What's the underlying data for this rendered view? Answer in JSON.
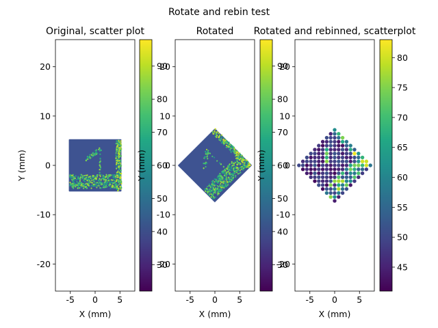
{
  "suptitle": "Rotate and rebin test",
  "colors": {
    "colormap": "viridis",
    "background": "#ffffff",
    "spine": "#000000"
  },
  "chart_data": [
    {
      "type": "scatter",
      "title": "Original, scatter plot",
      "xlabel": "X (mm)",
      "ylabel": "Y (mm)",
      "xlim": [
        -8,
        8
      ],
      "ylim": [
        -25.5,
        25.5
      ],
      "xticks": [
        -5,
        0,
        5
      ],
      "yticks": [
        -20,
        -10,
        0,
        10,
        20
      ],
      "colorbar": {
        "range": [
          22,
          98
        ],
        "ticks": [
          30,
          40,
          50,
          60,
          70,
          80,
          90
        ]
      },
      "shape": "square",
      "half_extent": 5.3,
      "background_value": 52,
      "background_color": "#3e5391",
      "features": {
        "stroke_1_vertical": {
          "x": [
            0.9,
            1.1
          ],
          "y": [
            -3.5,
            3.2
          ]
        },
        "stroke_1_flag": {
          "from": [
            -1.7,
            1.2
          ],
          "to": [
            0.9,
            3.2
          ]
        },
        "stroke_1_base": {
          "x": [
            -5.1,
            5.2
          ],
          "y": [
            -4.7,
            -3.3
          ]
        },
        "underline": {
          "x": [
            -5.1,
            5.2
          ],
          "y": [
            -3.2,
            -1.9
          ]
        },
        "right_edge": {
          "x": [
            4.2,
            5.3
          ],
          "y": [
            -5.2,
            5.2
          ]
        },
        "value_range": [
          62,
          96
        ]
      }
    },
    {
      "type": "scatter",
      "title": "Rotated",
      "xlabel": "X (mm)",
      "ylabel": "Y (mm)",
      "xlim": [
        -8,
        8
      ],
      "ylim": [
        -25.5,
        25.5
      ],
      "xticks": [
        -5,
        0,
        5
      ],
      "yticks": [
        -20,
        -10,
        0,
        10,
        20
      ],
      "colorbar": {
        "range": [
          22,
          98
        ],
        "ticks": [
          30,
          40,
          50,
          60,
          70,
          80,
          90
        ]
      },
      "shape": "diamond",
      "rotation_deg": 45,
      "half_extent": 7.4,
      "background_value": 52,
      "background_color": "#3e5391"
    },
    {
      "type": "scatter",
      "title": "Rotated and rebinned, scatterplot",
      "xlabel": "X (mm)",
      "ylabel": "Y (mm)",
      "xlim": [
        -8,
        8
      ],
      "ylim": [
        -25.5,
        25.5
      ],
      "xticks": [
        -5,
        0,
        5
      ],
      "yticks": [
        -20,
        -10,
        0,
        10,
        20
      ],
      "colorbar": {
        "range": [
          41,
          83
        ],
        "ticks": [
          45,
          50,
          55,
          60,
          65,
          70,
          75,
          80
        ]
      },
      "shape": "diamond-grid",
      "grid_step": 0.8,
      "grid_half_extent": 7.2,
      "value_range": [
        42,
        82
      ]
    }
  ]
}
